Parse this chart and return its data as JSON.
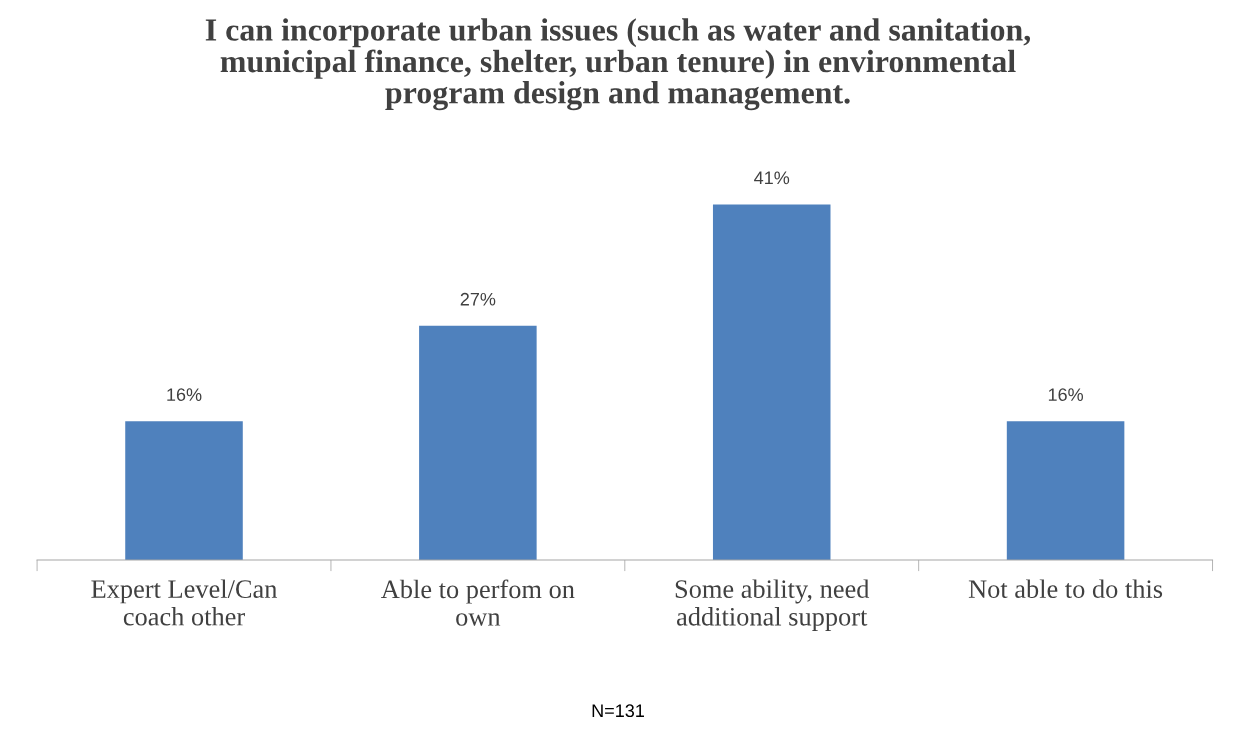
{
  "chart_data": {
    "type": "bar",
    "title": "I can incorporate urban issues (such as water and sanitation,\nmunicipal finance, shelter, urban tenure) in environmental\nprogram design and management.",
    "categories": [
      "Expert Level/Can\ncoach other",
      "Able to perfom on\nown",
      "Some ability, need\nadditional support",
      "Not able to do this"
    ],
    "values": [
      16,
      27,
      41,
      16
    ],
    "value_labels": [
      "16%",
      "27%",
      "41%",
      "16%"
    ],
    "color": "#4f81bd",
    "annotations": [
      "N=131"
    ],
    "grid": false,
    "legend": false
  }
}
